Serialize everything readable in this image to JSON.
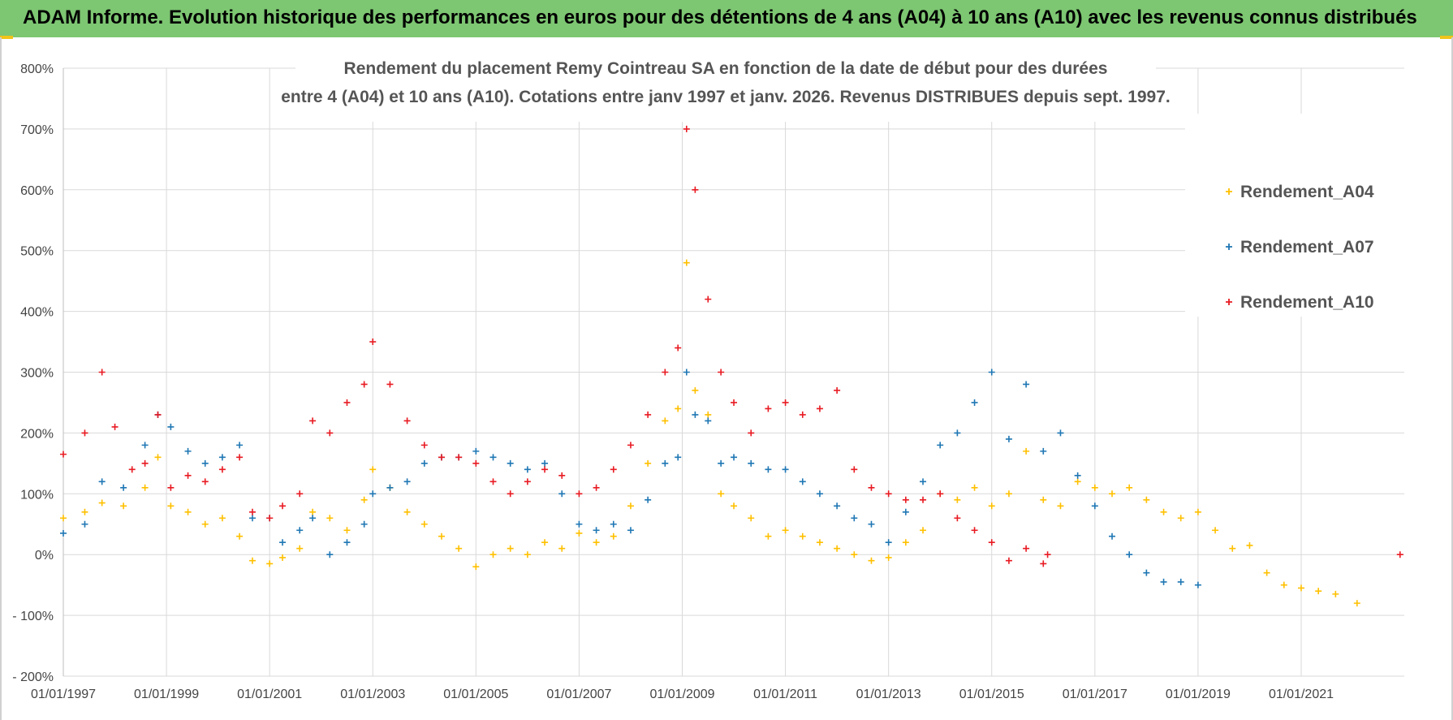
{
  "banner": {
    "text": "ADAM Informe. Evolution historique des performances en euros pour des détentions de 4 ans (A04) à 10 ans (A10) avec les revenus connus distribués",
    "color": "#7dc672"
  },
  "chart_data": {
    "type": "scatter",
    "title_lines": [
      "Rendement du placement Remy Cointreau SA en fonction de la date de début pour des durées",
      "entre 4 (A04) et 10 ans (A10). Cotations entre janv 1997 et janv. 2026. Revenus DISTRIBUES depuis sept. 1997."
    ],
    "xlabel": "",
    "ylabel": "",
    "x_range": [
      "1997-01-01",
      "2022-12-31"
    ],
    "ylim": [
      -200,
      800
    ],
    "y_ticks": [
      -200,
      -100,
      0,
      100,
      200,
      300,
      400,
      500,
      600,
      700,
      800
    ],
    "y_tick_labels": [
      "- 200%",
      "- 100%",
      "0%",
      "100%",
      "200%",
      "300%",
      "400%",
      "500%",
      "600%",
      "700%",
      "800%"
    ],
    "x_ticks": [
      "1997-01-01",
      "1999-01-01",
      "2001-01-01",
      "2003-01-01",
      "2005-01-01",
      "2007-01-01",
      "2009-01-01",
      "2011-01-01",
      "2013-01-01",
      "2015-01-01",
      "2017-01-01",
      "2019-01-01",
      "2021-01-01"
    ],
    "x_tick_labels": [
      "01/01/1997",
      "01/01/1999",
      "01/01/2001",
      "01/01/2003",
      "01/01/2005",
      "01/01/2007",
      "01/01/2009",
      "01/01/2011",
      "01/01/2013",
      "01/01/2015",
      "01/01/2017",
      "01/01/2019",
      "01/01/2021"
    ],
    "grid": true,
    "legend_position": "top-right",
    "series": [
      {
        "name": "Rendement_A04",
        "color": "#ffc000",
        "points": [
          [
            "1997-01",
            60
          ],
          [
            "1997-06",
            70
          ],
          [
            "1997-10",
            85
          ],
          [
            "1998-03",
            80
          ],
          [
            "1998-08",
            110
          ],
          [
            "1998-11",
            160
          ],
          [
            "1999-02",
            80
          ],
          [
            "1999-06",
            70
          ],
          [
            "1999-10",
            50
          ],
          [
            "2000-02",
            60
          ],
          [
            "2000-06",
            30
          ],
          [
            "2000-09",
            -10
          ],
          [
            "2001-01",
            -15
          ],
          [
            "2001-04",
            -5
          ],
          [
            "2001-08",
            10
          ],
          [
            "2001-11",
            70
          ],
          [
            "2002-03",
            60
          ],
          [
            "2002-07",
            40
          ],
          [
            "2002-11",
            90
          ],
          [
            "2003-01",
            140
          ],
          [
            "2003-05",
            110
          ],
          [
            "2003-09",
            70
          ],
          [
            "2004-01",
            50
          ],
          [
            "2004-05",
            30
          ],
          [
            "2004-09",
            10
          ],
          [
            "2005-01",
            -20
          ],
          [
            "2005-05",
            0
          ],
          [
            "2005-09",
            10
          ],
          [
            "2006-01",
            0
          ],
          [
            "2006-05",
            20
          ],
          [
            "2006-09",
            10
          ],
          [
            "2007-01",
            35
          ],
          [
            "2007-05",
            20
          ],
          [
            "2007-09",
            30
          ],
          [
            "2008-01",
            80
          ],
          [
            "2008-05",
            150
          ],
          [
            "2008-09",
            220
          ],
          [
            "2008-12",
            240
          ],
          [
            "2009-02",
            480
          ],
          [
            "2009-04",
            270
          ],
          [
            "2009-07",
            230
          ],
          [
            "2009-10",
            100
          ],
          [
            "2010-01",
            80
          ],
          [
            "2010-05",
            60
          ],
          [
            "2010-09",
            30
          ],
          [
            "2011-01",
            40
          ],
          [
            "2011-05",
            30
          ],
          [
            "2011-09",
            20
          ],
          [
            "2012-01",
            10
          ],
          [
            "2012-05",
            0
          ],
          [
            "2012-09",
            -10
          ],
          [
            "2013-01",
            -5
          ],
          [
            "2013-05",
            20
          ],
          [
            "2013-09",
            40
          ],
          [
            "2014-01",
            100
          ],
          [
            "2014-05",
            90
          ],
          [
            "2014-09",
            110
          ],
          [
            "2015-01",
            80
          ],
          [
            "2015-05",
            100
          ],
          [
            "2015-09",
            170
          ],
          [
            "2016-01",
            90
          ],
          [
            "2016-05",
            80
          ],
          [
            "2016-09",
            120
          ],
          [
            "2017-01",
            110
          ],
          [
            "2017-05",
            100
          ],
          [
            "2017-09",
            110
          ],
          [
            "2018-01",
            90
          ],
          [
            "2018-05",
            70
          ],
          [
            "2018-09",
            60
          ],
          [
            "2019-01",
            70
          ],
          [
            "2019-05",
            40
          ],
          [
            "2019-09",
            10
          ],
          [
            "2020-01",
            15
          ],
          [
            "2020-05",
            -30
          ],
          [
            "2020-09",
            -50
          ],
          [
            "2021-01",
            -55
          ],
          [
            "2021-05",
            -60
          ],
          [
            "2021-09",
            -65
          ],
          [
            "2022-02",
            -80
          ]
        ]
      },
      {
        "name": "Rendement_A07",
        "color": "#1f77b4",
        "points": [
          [
            "1997-01",
            35
          ],
          [
            "1997-06",
            50
          ],
          [
            "1997-10",
            120
          ],
          [
            "1998-03",
            110
          ],
          [
            "1998-08",
            180
          ],
          [
            "1998-11",
            230
          ],
          [
            "1999-02",
            210
          ],
          [
            "1999-06",
            170
          ],
          [
            "1999-10",
            150
          ],
          [
            "2000-02",
            160
          ],
          [
            "2000-06",
            180
          ],
          [
            "2000-09",
            60
          ],
          [
            "2001-01",
            60
          ],
          [
            "2001-04",
            20
          ],
          [
            "2001-08",
            40
          ],
          [
            "2001-11",
            60
          ],
          [
            "2002-03",
            0
          ],
          [
            "2002-07",
            20
          ],
          [
            "2002-11",
            50
          ],
          [
            "2003-01",
            100
          ],
          [
            "2003-05",
            110
          ],
          [
            "2003-09",
            120
          ],
          [
            "2004-01",
            150
          ],
          [
            "2004-05",
            160
          ],
          [
            "2004-09",
            160
          ],
          [
            "2005-01",
            170
          ],
          [
            "2005-05",
            160
          ],
          [
            "2005-09",
            150
          ],
          [
            "2006-01",
            140
          ],
          [
            "2006-05",
            150
          ],
          [
            "2006-09",
            100
          ],
          [
            "2007-01",
            50
          ],
          [
            "2007-05",
            40
          ],
          [
            "2007-09",
            50
          ],
          [
            "2008-01",
            40
          ],
          [
            "2008-05",
            90
          ],
          [
            "2008-09",
            150
          ],
          [
            "2008-12",
            160
          ],
          [
            "2009-02",
            300
          ],
          [
            "2009-04",
            230
          ],
          [
            "2009-07",
            220
          ],
          [
            "2009-10",
            150
          ],
          [
            "2010-01",
            160
          ],
          [
            "2010-05",
            150
          ],
          [
            "2010-09",
            140
          ],
          [
            "2011-01",
            140
          ],
          [
            "2011-05",
            120
          ],
          [
            "2011-09",
            100
          ],
          [
            "2012-01",
            80
          ],
          [
            "2012-05",
            60
          ],
          [
            "2012-09",
            50
          ],
          [
            "2013-01",
            20
          ],
          [
            "2013-05",
            70
          ],
          [
            "2013-09",
            120
          ],
          [
            "2014-01",
            180
          ],
          [
            "2014-05",
            200
          ],
          [
            "2014-09",
            250
          ],
          [
            "2015-01",
            300
          ],
          [
            "2015-05",
            190
          ],
          [
            "2015-09",
            280
          ],
          [
            "2016-01",
            170
          ],
          [
            "2016-05",
            200
          ],
          [
            "2016-09",
            130
          ],
          [
            "2017-01",
            80
          ],
          [
            "2017-05",
            30
          ],
          [
            "2017-09",
            0
          ],
          [
            "2018-01",
            -30
          ],
          [
            "2018-05",
            -45
          ],
          [
            "2018-09",
            -45
          ],
          [
            "2019-01",
            -50
          ]
        ]
      },
      {
        "name": "Rendement_A10",
        "color": "#e81b23",
        "points": [
          [
            "1997-01",
            165
          ],
          [
            "1997-06",
            200
          ],
          [
            "1997-10",
            300
          ],
          [
            "1998-01",
            210
          ],
          [
            "1998-05",
            140
          ],
          [
            "1998-08",
            150
          ],
          [
            "1998-11",
            230
          ],
          [
            "1999-02",
            110
          ],
          [
            "1999-06",
            130
          ],
          [
            "1999-10",
            120
          ],
          [
            "2000-02",
            140
          ],
          [
            "2000-06",
            160
          ],
          [
            "2000-09",
            70
          ],
          [
            "2001-01",
            60
          ],
          [
            "2001-04",
            80
          ],
          [
            "2001-08",
            100
          ],
          [
            "2001-11",
            220
          ],
          [
            "2002-03",
            200
          ],
          [
            "2002-07",
            250
          ],
          [
            "2002-11",
            280
          ],
          [
            "2003-01",
            350
          ],
          [
            "2003-05",
            280
          ],
          [
            "2003-09",
            220
          ],
          [
            "2004-01",
            180
          ],
          [
            "2004-05",
            160
          ],
          [
            "2004-09",
            160
          ],
          [
            "2005-01",
            150
          ],
          [
            "2005-05",
            120
          ],
          [
            "2005-09",
            100
          ],
          [
            "2006-01",
            120
          ],
          [
            "2006-05",
            140
          ],
          [
            "2006-09",
            130
          ],
          [
            "2007-01",
            100
          ],
          [
            "2007-05",
            110
          ],
          [
            "2007-09",
            140
          ],
          [
            "2008-01",
            180
          ],
          [
            "2008-05",
            230
          ],
          [
            "2008-09",
            300
          ],
          [
            "2008-12",
            340
          ],
          [
            "2009-02",
            700
          ],
          [
            "2009-04",
            600
          ],
          [
            "2009-07",
            420
          ],
          [
            "2009-10",
            300
          ],
          [
            "2010-01",
            250
          ],
          [
            "2010-05",
            200
          ],
          [
            "2010-09",
            240
          ],
          [
            "2011-01",
            250
          ],
          [
            "2011-05",
            230
          ],
          [
            "2011-09",
            240
          ],
          [
            "2012-01",
            270
          ],
          [
            "2012-05",
            140
          ],
          [
            "2012-09",
            110
          ],
          [
            "2013-01",
            100
          ],
          [
            "2013-05",
            90
          ],
          [
            "2013-09",
            90
          ],
          [
            "2014-01",
            100
          ],
          [
            "2014-05",
            60
          ],
          [
            "2014-09",
            40
          ],
          [
            "2015-01",
            20
          ],
          [
            "2015-05",
            -10
          ],
          [
            "2015-09",
            10
          ],
          [
            "2016-01",
            -15
          ],
          [
            "2016-02",
            0
          ],
          [
            "2022-12",
            0
          ]
        ]
      }
    ]
  }
}
